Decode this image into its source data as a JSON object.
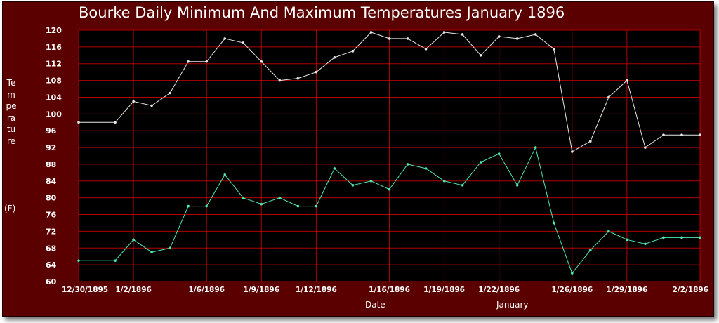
{
  "chart_data": {
    "type": "line",
    "title": "Bourke Daily Minimum And Maximum Temperatures January 1896",
    "xlabel": "Date",
    "ylabel": "Temperature",
    "yunit": "(F)",
    "annotation": "January",
    "ylim": [
      60,
      120
    ],
    "yticks": [
      120,
      116,
      112,
      108,
      104,
      100,
      96,
      92,
      88,
      84,
      80,
      76,
      72,
      68,
      64,
      60
    ],
    "xlim": [
      "12/30/1895",
      "2/2/1896"
    ],
    "xticks": [
      "12/30/1895",
      "1/2/1896",
      "1/6/1896",
      "1/9/1896",
      "1/12/1896",
      "1/16/1896",
      "1/19/1896",
      "1/22/1896",
      "1/26/1896",
      "1/29/1896",
      "2/2/1896"
    ],
    "grid": true,
    "series": [
      {
        "color": "#e8e8e8",
        "x": [
          "12/30/1895",
          "1/1/1896",
          "1/2/1896",
          "1/3/1896",
          "1/4/1896",
          "1/5/1896",
          "1/6/1896",
          "1/7/1896",
          "1/8/1896",
          "1/9/1896",
          "1/10/1896",
          "1/11/1896",
          "1/12/1896",
          "1/13/1896",
          "1/14/1896",
          "1/15/1896",
          "1/16/1896",
          "1/17/1896",
          "1/18/1896",
          "1/19/1896",
          "1/20/1896",
          "1/21/1896",
          "1/22/1896",
          "1/23/1896",
          "1/24/1896",
          "1/25/1896",
          "1/26/1896",
          "1/27/1896",
          "1/28/1896",
          "1/29/1896",
          "1/30/1896",
          "1/31/1896",
          "2/1/1896",
          "2/2/1896"
        ],
        "values": [
          98,
          98,
          103,
          102,
          105,
          112.5,
          112.5,
          118,
          117,
          112.5,
          108,
          108.5,
          110,
          113.5,
          115,
          119.5,
          118,
          118,
          115.5,
          119.5,
          119,
          114,
          118.5,
          118,
          119,
          115.5,
          91,
          93.5,
          104,
          108,
          92,
          95,
          95,
          95
        ]
      },
      {
        "color": "#4de8b8",
        "x": [
          "12/30/1895",
          "1/1/1896",
          "1/2/1896",
          "1/3/1896",
          "1/4/1896",
          "1/5/1896",
          "1/6/1896",
          "1/7/1896",
          "1/8/1896",
          "1/9/1896",
          "1/10/1896",
          "1/11/1896",
          "1/12/1896",
          "1/13/1896",
          "1/14/1896",
          "1/15/1896",
          "1/16/1896",
          "1/17/1896",
          "1/18/1896",
          "1/19/1896",
          "1/20/1896",
          "1/21/1896",
          "1/22/1896",
          "1/23/1896",
          "1/24/1896",
          "1/25/1896",
          "1/26/1896",
          "1/27/1896",
          "1/28/1896",
          "1/29/1896",
          "1/30/1896",
          "1/31/1896",
          "2/1/1896",
          "2/2/1896"
        ],
        "values": [
          65,
          65,
          70,
          67,
          68,
          78,
          78,
          85.5,
          80,
          78.5,
          80,
          78,
          78,
          87,
          83,
          84,
          82,
          88,
          87,
          84,
          83,
          88.5,
          90.5,
          83,
          92,
          74,
          62,
          67.5,
          72,
          70,
          69,
          70.5,
          70.5,
          70.5
        ]
      }
    ]
  }
}
